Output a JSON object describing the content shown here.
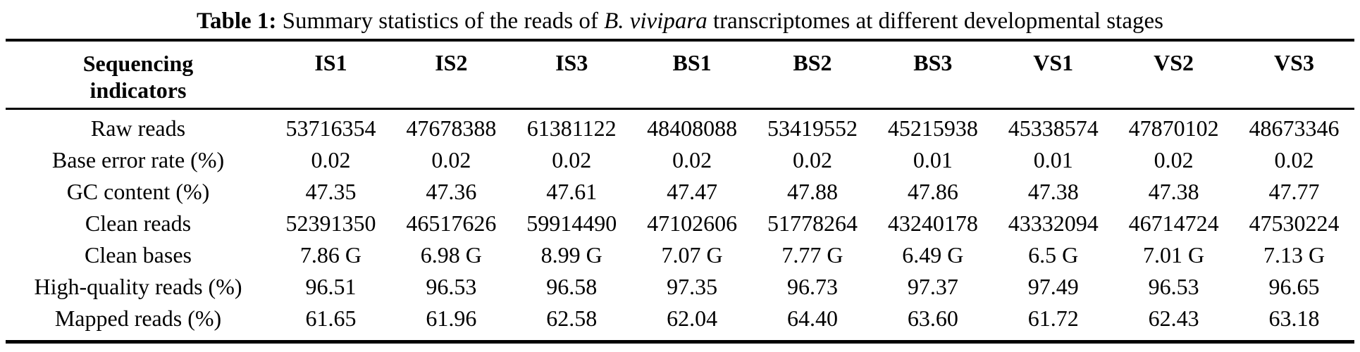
{
  "title": {
    "label": "Table 1:",
    "text_before_species": "Summary statistics of the reads of",
    "species": "B. vivipara",
    "text_after_species": "transcriptomes at different developmental stages"
  },
  "table": {
    "indicator_header_line1": "Sequencing",
    "indicator_header_line2": "indicators",
    "columns": [
      "IS1",
      "IS2",
      "IS3",
      "BS1",
      "BS2",
      "BS3",
      "VS1",
      "VS2",
      "VS3"
    ],
    "rows": [
      {
        "label": "Raw reads",
        "values": [
          "53716354",
          "47678388",
          "61381122",
          "48408088",
          "53419552",
          "45215938",
          "45338574",
          "47870102",
          "48673346"
        ]
      },
      {
        "label": "Base error rate (%)",
        "values": [
          "0.02",
          "0.02",
          "0.02",
          "0.02",
          "0.02",
          "0.01",
          "0.01",
          "0.02",
          "0.02"
        ]
      },
      {
        "label": "GC content (%)",
        "values": [
          "47.35",
          "47.36",
          "47.61",
          "47.47",
          "47.88",
          "47.86",
          "47.38",
          "47.38",
          "47.77"
        ]
      },
      {
        "label": "Clean reads",
        "values": [
          "52391350",
          "46517626",
          "59914490",
          "47102606",
          "51778264",
          "43240178",
          "43332094",
          "46714724",
          "47530224"
        ]
      },
      {
        "label": "Clean bases",
        "values": [
          "7.86 G",
          "6.98 G",
          "8.99 G",
          "7.07 G",
          "7.77 G",
          "6.49 G",
          "6.5 G",
          "7.01 G",
          "7.13 G"
        ]
      },
      {
        "label": "High-quality reads (%)",
        "values": [
          "96.51",
          "96.53",
          "96.58",
          "97.35",
          "96.73",
          "97.37",
          "97.49",
          "96.53",
          "96.65"
        ]
      },
      {
        "label": "Mapped reads (%)",
        "values": [
          "61.65",
          "61.96",
          "62.58",
          "62.04",
          "64.40",
          "63.60",
          "61.72",
          "62.43",
          "63.18"
        ]
      }
    ]
  },
  "colors": {
    "text": "#000000",
    "background": "#ffffff",
    "rule": "#000000"
  }
}
